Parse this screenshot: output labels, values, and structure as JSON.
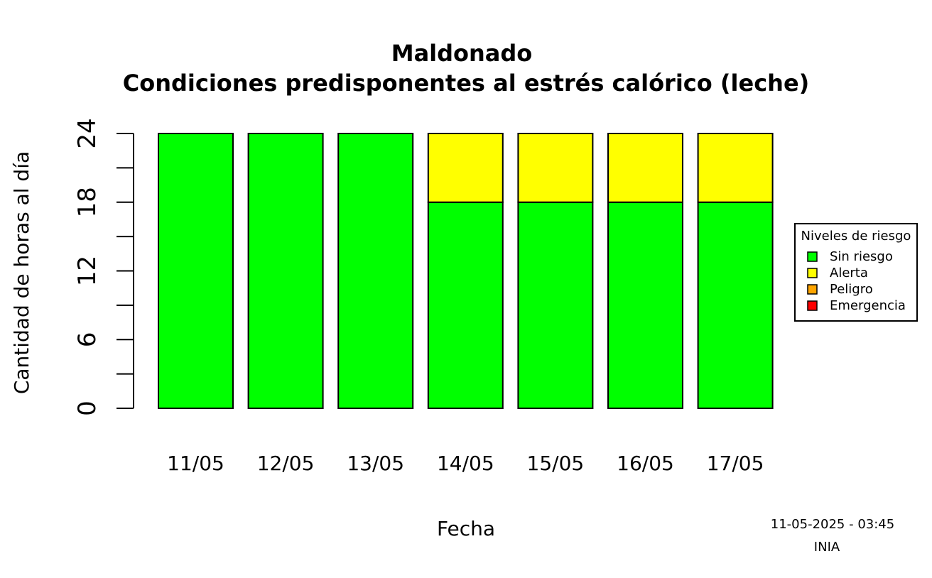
{
  "chart_data": {
    "type": "bar",
    "stacked": true,
    "title": "Maldonado",
    "subtitle": "Condiciones predisponentes al estrés calórico (leche)",
    "xlabel": "Fecha",
    "ylabel": "Cantidad de horas al día",
    "ylim": [
      0,
      24
    ],
    "yticks": [
      0,
      6,
      12,
      18,
      24
    ],
    "categories": [
      "11/05",
      "12/05",
      "13/05",
      "14/05",
      "15/05",
      "16/05",
      "17/05"
    ],
    "series": [
      {
        "name": "Sin riesgo",
        "color": "#00ff00",
        "values": [
          24,
          24,
          24,
          18,
          18,
          18,
          18
        ]
      },
      {
        "name": "Alerta",
        "color": "#ffff00",
        "values": [
          0,
          0,
          0,
          6,
          6,
          6,
          6
        ]
      },
      {
        "name": "Peligro",
        "color": "#ffa500",
        "values": [
          0,
          0,
          0,
          0,
          0,
          0,
          0
        ]
      },
      {
        "name": "Emergencia",
        "color": "#ff0000",
        "values": [
          0,
          0,
          0,
          0,
          0,
          0,
          0
        ]
      }
    ],
    "legend": {
      "title": "Niveles de riesgo",
      "position": "right"
    },
    "grid": false
  },
  "footer": {
    "timestamp": "11-05-2025 - 03:45",
    "source": "INIA"
  }
}
